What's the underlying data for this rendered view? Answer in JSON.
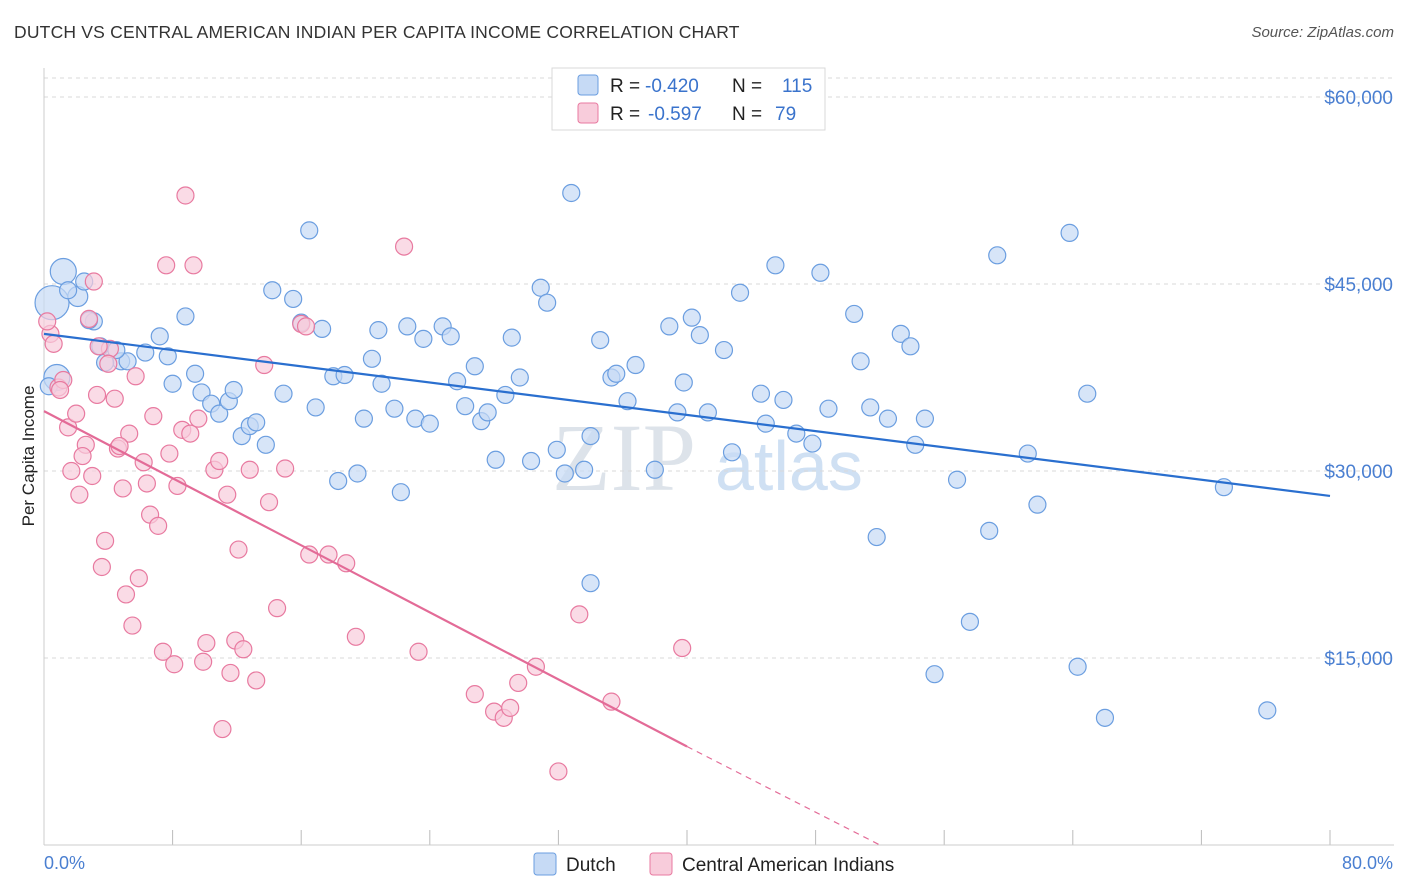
{
  "title": "DUTCH VS CENTRAL AMERICAN INDIAN PER CAPITA INCOME CORRELATION CHART",
  "source": "Source: ZipAtlas.com",
  "watermark": {
    "zip": "ZIP",
    "atlas": "atlas"
  },
  "colors": {
    "dutch": "#6b9ee0",
    "dutch_fill": "#c6daf5",
    "cai": "#e87aa0",
    "cai_fill": "#f8ccdb",
    "dutch_line": "#2a6fcf",
    "cai_line": "#e36b97",
    "grid": "#d9d9d9",
    "axis_text": "#4a7fd1"
  },
  "legend": {
    "rows": [
      {
        "r_label": "R =",
        "r_value": "-0.420",
        "n_label": "N =",
        "n_value": "115"
      },
      {
        "r_label": "R =",
        "r_value": "-0.597",
        "n_label": "N =",
        "n_value": "79"
      }
    ]
  },
  "chart_data": {
    "type": "scatter",
    "xlabel": "",
    "ylabel": "Per Capita Income",
    "xlim": [
      0,
      80
    ],
    "ylim": [
      0,
      62000
    ],
    "x_tick_labels": {
      "left": "0.0%",
      "right": "80.0%"
    },
    "y_ticks": [
      {
        "value": 15000,
        "label": "$15,000"
      },
      {
        "value": 30000,
        "label": "$30,000"
      },
      {
        "value": 45000,
        "label": "$45,000"
      },
      {
        "value": 60000,
        "label": "$60,000"
      }
    ],
    "grid": true,
    "legend_position": "top-center",
    "series": [
      {
        "name": "Dutch",
        "trend": {
          "x": [
            0,
            80
          ],
          "y": [
            41000,
            28000
          ]
        },
        "points": [
          [
            0.5,
            43500
          ],
          [
            1.2,
            46000
          ],
          [
            2.1,
            44000
          ],
          [
            0.8,
            37500
          ],
          [
            3.1,
            42000
          ],
          [
            2.5,
            45200
          ],
          [
            3.5,
            40000
          ],
          [
            4.8,
            38800
          ],
          [
            5.2,
            38800
          ],
          [
            6.3,
            39500
          ],
          [
            7.2,
            40800
          ],
          [
            7.7,
            39200
          ],
          [
            8.0,
            37000
          ],
          [
            8.8,
            42400
          ],
          [
            9.4,
            37800
          ],
          [
            9.8,
            36300
          ],
          [
            10.4,
            35400
          ],
          [
            10.9,
            34600
          ],
          [
            11.5,
            35600
          ],
          [
            11.8,
            36500
          ],
          [
            12.3,
            32800
          ],
          [
            12.8,
            33600
          ],
          [
            13.2,
            33900
          ],
          [
            13.8,
            32100
          ],
          [
            14.2,
            44500
          ],
          [
            14.9,
            36200
          ],
          [
            15.5,
            43800
          ],
          [
            16.0,
            41900
          ],
          [
            16.5,
            49300
          ],
          [
            16.9,
            35100
          ],
          [
            17.3,
            41400
          ],
          [
            18.0,
            37600
          ],
          [
            18.3,
            29200
          ],
          [
            18.7,
            37700
          ],
          [
            19.5,
            29800
          ],
          [
            19.9,
            34200
          ],
          [
            20.4,
            39000
          ],
          [
            20.8,
            41300
          ],
          [
            21.0,
            37000
          ],
          [
            21.8,
            35000
          ],
          [
            22.2,
            28300
          ],
          [
            22.6,
            41600
          ],
          [
            23.1,
            34200
          ],
          [
            23.6,
            40600
          ],
          [
            24.0,
            33800
          ],
          [
            24.8,
            41600
          ],
          [
            25.3,
            40800
          ],
          [
            25.7,
            37200
          ],
          [
            26.2,
            35200
          ],
          [
            26.8,
            38400
          ],
          [
            27.2,
            34000
          ],
          [
            27.6,
            34700
          ],
          [
            28.1,
            30900
          ],
          [
            28.7,
            36100
          ],
          [
            29.1,
            40700
          ],
          [
            29.6,
            37500
          ],
          [
            30.3,
            30800
          ],
          [
            30.9,
            44700
          ],
          [
            31.3,
            43500
          ],
          [
            31.9,
            31700
          ],
          [
            32.4,
            29800
          ],
          [
            32.8,
            52300
          ],
          [
            33.6,
            30100
          ],
          [
            34.0,
            32800
          ],
          [
            34.6,
            40500
          ],
          [
            35.3,
            37500
          ],
          [
            35.6,
            37800
          ],
          [
            36.3,
            35600
          ],
          [
            36.8,
            38500
          ],
          [
            38.0,
            30100
          ],
          [
            38.9,
            41600
          ],
          [
            39.4,
            34700
          ],
          [
            39.8,
            37100
          ],
          [
            40.3,
            42300
          ],
          [
            40.8,
            40900
          ],
          [
            41.3,
            34700
          ],
          [
            42.3,
            39700
          ],
          [
            42.8,
            31500
          ],
          [
            43.3,
            44300
          ],
          [
            44.6,
            36200
          ],
          [
            44.9,
            33800
          ],
          [
            45.5,
            46500
          ],
          [
            46.0,
            35700
          ],
          [
            46.8,
            33000
          ],
          [
            47.8,
            32200
          ],
          [
            48.3,
            45900
          ],
          [
            48.8,
            35000
          ],
          [
            50.4,
            42600
          ],
          [
            50.8,
            38800
          ],
          [
            51.4,
            35100
          ],
          [
            51.8,
            24700
          ],
          [
            52.5,
            34200
          ],
          [
            53.3,
            41000
          ],
          [
            53.9,
            40000
          ],
          [
            54.2,
            32100
          ],
          [
            54.8,
            34200
          ],
          [
            55.4,
            13700
          ],
          [
            56.8,
            29300
          ],
          [
            57.6,
            17900
          ],
          [
            58.8,
            25200
          ],
          [
            59.3,
            47300
          ],
          [
            61.2,
            31400
          ],
          [
            61.8,
            27300
          ],
          [
            63.8,
            49100
          ],
          [
            64.3,
            14300
          ],
          [
            64.9,
            36200
          ],
          [
            66.0,
            10200
          ],
          [
            73.4,
            28700
          ],
          [
            76.1,
            10800
          ],
          [
            34.0,
            21000
          ],
          [
            1.5,
            44500
          ],
          [
            2.8,
            42100
          ],
          [
            3.8,
            38700
          ],
          [
            0.3,
            36800
          ],
          [
            4.5,
            39700
          ]
        ]
      },
      {
        "name": "Central American Indians",
        "trend": {
          "x": [
            0,
            40
          ],
          "y": [
            34800,
            7900
          ]
        },
        "trend_dashed": {
          "x": [
            40,
            52
          ],
          "y": [
            7900,
            0
          ]
        },
        "points": [
          [
            0.4,
            41000
          ],
          [
            0.9,
            36700
          ],
          [
            1.2,
            37300
          ],
          [
            1.5,
            33500
          ],
          [
            1.7,
            30000
          ],
          [
            2.0,
            34600
          ],
          [
            2.2,
            28100
          ],
          [
            2.6,
            32100
          ],
          [
            2.8,
            42200
          ],
          [
            3.0,
            29600
          ],
          [
            3.3,
            36100
          ],
          [
            3.6,
            22300
          ],
          [
            3.8,
            24400
          ],
          [
            4.1,
            39800
          ],
          [
            4.4,
            35800
          ],
          [
            4.6,
            31800
          ],
          [
            4.9,
            28600
          ],
          [
            5.1,
            20100
          ],
          [
            5.3,
            33000
          ],
          [
            5.5,
            17600
          ],
          [
            5.9,
            21400
          ],
          [
            6.2,
            30700
          ],
          [
            6.6,
            26500
          ],
          [
            6.8,
            34400
          ],
          [
            7.1,
            25600
          ],
          [
            7.4,
            15500
          ],
          [
            7.6,
            46500
          ],
          [
            7.8,
            31400
          ],
          [
            8.1,
            14500
          ],
          [
            8.3,
            28800
          ],
          [
            8.6,
            33300
          ],
          [
            8.8,
            52100
          ],
          [
            9.1,
            33000
          ],
          [
            9.3,
            46500
          ],
          [
            9.6,
            34200
          ],
          [
            9.9,
            14700
          ],
          [
            10.1,
            16200
          ],
          [
            10.6,
            30100
          ],
          [
            10.9,
            30800
          ],
          [
            11.1,
            9300
          ],
          [
            11.4,
            28100
          ],
          [
            11.6,
            13800
          ],
          [
            11.9,
            16400
          ],
          [
            12.1,
            23700
          ],
          [
            12.4,
            15700
          ],
          [
            12.8,
            30100
          ],
          [
            13.2,
            13200
          ],
          [
            13.7,
            38500
          ],
          [
            14.0,
            27500
          ],
          [
            14.5,
            19000
          ],
          [
            15.0,
            30200
          ],
          [
            16.0,
            41800
          ],
          [
            16.5,
            23300
          ],
          [
            17.7,
            23300
          ],
          [
            18.8,
            22600
          ],
          [
            19.4,
            16700
          ],
          [
            22.4,
            48000
          ],
          [
            23.3,
            15500
          ],
          [
            26.8,
            12100
          ],
          [
            28.0,
            10700
          ],
          [
            28.6,
            10200
          ],
          [
            29.0,
            11000
          ],
          [
            29.5,
            13000
          ],
          [
            30.6,
            14300
          ],
          [
            32.0,
            5900
          ],
          [
            33.3,
            18500
          ],
          [
            35.3,
            11500
          ],
          [
            39.7,
            15800
          ],
          [
            0.6,
            40200
          ],
          [
            1.0,
            36500
          ],
          [
            2.4,
            31200
          ],
          [
            3.1,
            45200
          ],
          [
            3.4,
            40000
          ],
          [
            4.0,
            38600
          ],
          [
            4.7,
            32000
          ],
          [
            5.7,
            37600
          ],
          [
            6.4,
            29000
          ],
          [
            16.3,
            41600
          ],
          [
            0.2,
            42000
          ]
        ]
      }
    ]
  },
  "bottom_legend": [
    {
      "label": "Dutch"
    },
    {
      "label": "Central American Indians"
    }
  ]
}
